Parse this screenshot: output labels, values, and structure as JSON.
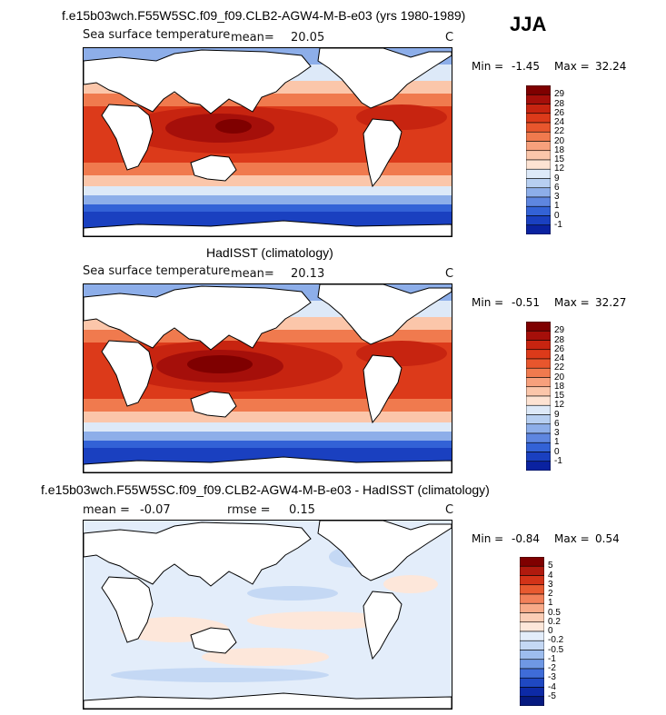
{
  "season": "JJA",
  "panels": [
    {
      "title": "f.e15b03wch.F55W5SC.f09_f09.CLB2-AGW4-M-B-e03 (yrs 1980-1989)",
      "field": "Sea surface temperature",
      "mean_label": "mean=",
      "mean_value": "20.05",
      "units": "C",
      "min_label": "Min =",
      "min_value": "-1.45",
      "max_label": "Max =",
      "max_value": "32.24",
      "colorbar": {
        "labels": [
          "29",
          "28",
          "26",
          "24",
          "22",
          "20",
          "18",
          "15",
          "12",
          "9",
          "6",
          "3",
          "1",
          "0",
          "-1"
        ],
        "colors": [
          "#7f0000",
          "#a50f0a",
          "#c72410",
          "#dc3a1a",
          "#e8562d",
          "#f07a4e",
          "#f7a07c",
          "#fbc6aa",
          "#fde3d3",
          "#dde9f8",
          "#b7cff1",
          "#8daee9",
          "#5e86e0",
          "#3362d6",
          "#1a40c0",
          "#0a22a0"
        ]
      }
    },
    {
      "title": "HadISST (climatology)",
      "field": "Sea surface temperature",
      "mean_label": "mean=",
      "mean_value": "20.13",
      "units": "C",
      "min_label": "Min =",
      "min_value": "-0.51",
      "max_label": "Max =",
      "max_value": "32.27",
      "colorbar": {
        "labels": [
          "29",
          "28",
          "26",
          "24",
          "22",
          "20",
          "18",
          "15",
          "12",
          "9",
          "6",
          "3",
          "1",
          "0",
          "-1"
        ],
        "colors": [
          "#7f0000",
          "#a50f0a",
          "#c72410",
          "#dc3a1a",
          "#e8562d",
          "#f07a4e",
          "#f7a07c",
          "#fbc6aa",
          "#fde3d3",
          "#dde9f8",
          "#b7cff1",
          "#8daee9",
          "#5e86e0",
          "#3362d6",
          "#1a40c0",
          "#0a22a0"
        ]
      }
    },
    {
      "title": "f.e15b03wch.F55W5SC.f09_f09.CLB2-AGW4-M-B-e03 - HadISST (climatology)",
      "mean_label": "mean =",
      "mean_value": "-0.07",
      "rmse_label": "rmse =",
      "rmse_value": "0.15",
      "units": "C",
      "min_label": "Min =",
      "min_value": "-0.84",
      "max_label": "Max =",
      "max_value": "0.54",
      "colorbar": {
        "labels": [
          "5",
          "4",
          "3",
          "2",
          "1",
          "0.5",
          "0.2",
          "0",
          "-0.2",
          "-0.5",
          "-1",
          "-2",
          "-3",
          "-4",
          "-5"
        ],
        "colors": [
          "#7f0000",
          "#b01a0e",
          "#d33318",
          "#e85a30",
          "#f2815a",
          "#f8aa88",
          "#fbcdb5",
          "#fde7da",
          "#e3edfa",
          "#c4d8f4",
          "#9dbdee",
          "#6f98e4",
          "#3f6cd8",
          "#1f48c2",
          "#0d2aa6",
          "#061a80"
        ]
      }
    }
  ]
}
